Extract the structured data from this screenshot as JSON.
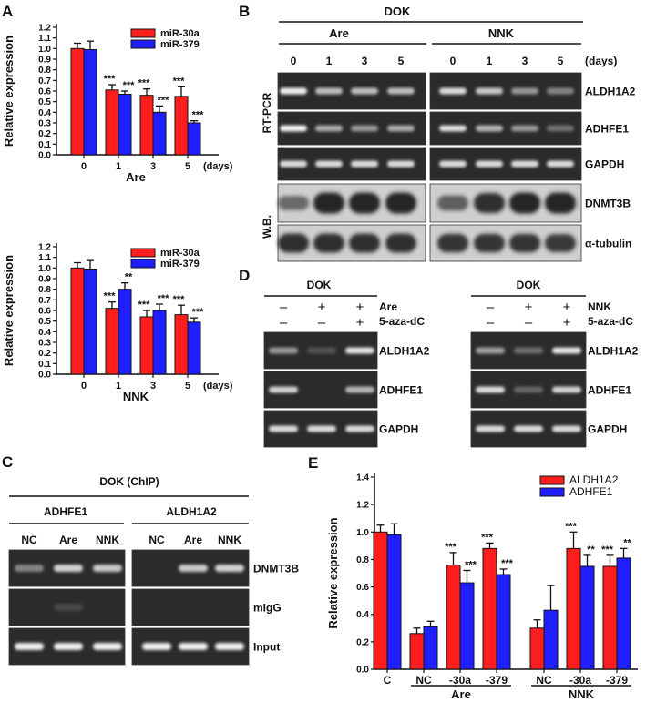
{
  "panel_labels": {
    "a": "A",
    "b": "B",
    "c": "C",
    "d": "D",
    "e": "E"
  },
  "colors": {
    "red": "#ff1e1e",
    "blue": "#1e1eff",
    "band": "#f0f0f0",
    "gel_bg": "#2b2b2b",
    "wb_bg": "#cfcfcf"
  },
  "panel_a": {
    "charts": [
      {
        "type": "bar",
        "categories": [
          "0",
          "1",
          "3",
          "5"
        ],
        "unit_label": "(days)",
        "xlabel": "Are",
        "ylabel": "Relative expression",
        "ylim": [
          0,
          1.2
        ],
        "yticks": [
          "0.0",
          "0.1",
          "0.2",
          "0.3",
          "0.4",
          "0.5",
          "0.6",
          "0.7",
          "0.8",
          "0.9",
          "1.0",
          "1.1",
          "1.2"
        ],
        "series": [
          {
            "name": "miR-30a",
            "values": [
              1.0,
              0.61,
              0.56,
              0.55
            ],
            "errors": [
              0.05,
              0.05,
              0.06,
              0.09
            ],
            "stars": [
              "",
              "***",
              "***",
              "***"
            ]
          },
          {
            "name": "miR-379",
            "values": [
              0.99,
              0.57,
              0.4,
              0.3
            ],
            "errors": [
              0.08,
              0.03,
              0.06,
              0.02
            ],
            "stars": [
              "",
              "***",
              "***",
              "***"
            ]
          }
        ]
      },
      {
        "type": "bar",
        "categories": [
          "0",
          "1",
          "3",
          "5"
        ],
        "unit_label": "(days)",
        "xlabel": "NNK",
        "ylabel": "Relative expression",
        "ylim": [
          0,
          1.2
        ],
        "yticks": [
          "0.0",
          "0.1",
          "0.2",
          "0.3",
          "0.4",
          "0.5",
          "0.6",
          "0.7",
          "0.8",
          "0.9",
          "1.0",
          "1.1",
          "1.2"
        ],
        "series": [
          {
            "name": "miR-30a",
            "values": [
              1.0,
              0.62,
              0.54,
              0.56
            ],
            "errors": [
              0.05,
              0.06,
              0.06,
              0.09
            ],
            "stars": [
              "",
              "***",
              "***",
              "***"
            ]
          },
          {
            "name": "miR-379",
            "values": [
              0.99,
              0.8,
              0.6,
              0.49
            ],
            "errors": [
              0.08,
              0.06,
              0.06,
              0.04
            ],
            "stars": [
              "",
              "**",
              "***",
              "***"
            ]
          }
        ]
      }
    ]
  },
  "panel_b": {
    "title": "DOK",
    "groups": [
      "Are",
      "NNK"
    ],
    "days": [
      "0",
      "1",
      "3",
      "5",
      "0",
      "1",
      "3",
      "5"
    ],
    "days_unit": "(days)",
    "side_rtpcr": "RT-PCR",
    "side_wb": "W.B.",
    "row_labels": [
      "ALDH1A2",
      "ADHFE1",
      "GAPDH",
      "DNMT3B",
      "α-tubulin"
    ]
  },
  "panel_c": {
    "title": "DOK (ChIP)",
    "groups": [
      "ADHFE1",
      "ALDH1A2"
    ],
    "lanes": [
      "NC",
      "Are",
      "NNK",
      "NC",
      "Are",
      "NNK"
    ],
    "row_labels": [
      "DNMT3B",
      "mIgG",
      "Input"
    ]
  },
  "panel_d": {
    "left": {
      "title": "DOK",
      "treat_label": "Are",
      "aza_label": "5-aza-dC",
      "treat_signs": [
        "–",
        "+",
        "+"
      ],
      "aza_signs": [
        "–",
        "–",
        "+"
      ]
    },
    "right": {
      "title": "DOK",
      "treat_label": "NNK",
      "aza_label": "5-aza-dC",
      "treat_signs": [
        "–",
        "+",
        "+"
      ],
      "aza_signs": [
        "–",
        "–",
        "+"
      ]
    },
    "row_labels": [
      "ALDH1A2",
      "ADHFE1",
      "GAPDH"
    ]
  },
  "panel_e": {
    "chart_data": {
      "type": "bar",
      "categories": [
        "C",
        "NC",
        "-30a",
        "-379",
        "NC",
        "-30a",
        "-379"
      ],
      "groups": [
        {
          "label": "Are",
          "from": 1,
          "to": 3
        },
        {
          "label": "NNK",
          "from": 4,
          "to": 6
        }
      ],
      "ylabel": "Relative expression",
      "ylim": [
        0,
        1.4
      ],
      "yticks": [
        "0.0",
        "0.2",
        "0.4",
        "0.6",
        "0.8",
        "1.0",
        "1.2",
        "1.4"
      ],
      "series": [
        {
          "name": "ALDH1A2",
          "values": [
            1.0,
            0.26,
            0.76,
            0.88,
            0.3,
            0.88,
            0.75
          ],
          "errors": [
            0.05,
            0.04,
            0.09,
            0.04,
            0.06,
            0.12,
            0.08
          ],
          "stars": [
            "",
            "",
            "***",
            "***",
            "",
            "***",
            "***"
          ]
        },
        {
          "name": "ADHFE1",
          "values": [
            0.98,
            0.31,
            0.63,
            0.69,
            0.43,
            0.75,
            0.81
          ],
          "errors": [
            0.08,
            0.04,
            0.09,
            0.04,
            0.18,
            0.08,
            0.07
          ],
          "stars": [
            "",
            "",
            "***",
            "***",
            "",
            "**",
            "**"
          ]
        }
      ]
    }
  }
}
